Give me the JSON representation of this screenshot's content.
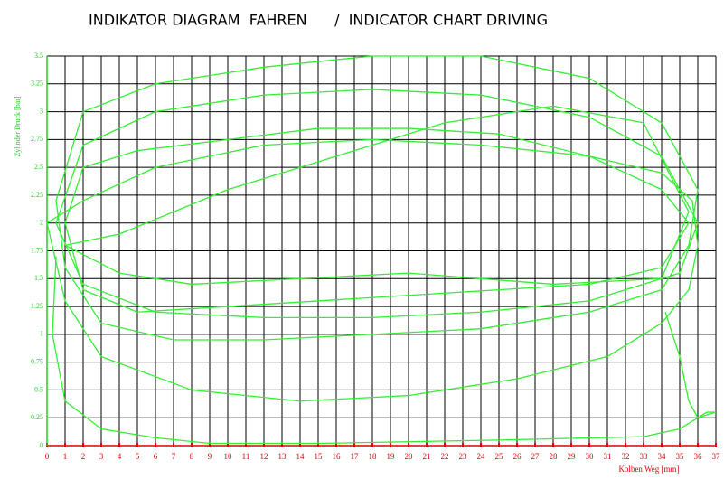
{
  "chart_data": {
    "type": "line",
    "title": "INDIKATOR DIAGRAM  FAHREN      /  INDICATOR CHART DRIVING",
    "x_label": "Kolben Weg [mm]",
    "y_label": "Zylinder Druck [bar]",
    "xlim": [
      0,
      37
    ],
    "ylim": [
      0,
      3.5
    ],
    "xticks": [
      0,
      1,
      2,
      3,
      4,
      5,
      6,
      7,
      8,
      9,
      10,
      11,
      12,
      13,
      14,
      15,
      16,
      17,
      18,
      19,
      20,
      21,
      22,
      23,
      24,
      25,
      26,
      27,
      28,
      29,
      30,
      31,
      32,
      33,
      34,
      35,
      36,
      37
    ],
    "yticks": [
      0,
      0.25,
      0.5,
      0.75,
      1,
      1.25,
      1.5,
      1.75,
      2,
      2.25,
      2.5,
      2.75,
      3,
      3.25,
      3.5
    ],
    "grid": true,
    "series": [
      {
        "color": "#33ee33",
        "x": [
          1,
          2,
          5,
          10,
          15,
          20,
          25,
          30,
          34,
          35.5,
          34,
          30,
          25,
          20,
          15,
          10,
          5,
          2,
          1
        ],
        "values": [
          2.0,
          2.5,
          2.65,
          2.75,
          2.85,
          2.85,
          2.8,
          2.6,
          2.3,
          2.0,
          1.6,
          1.45,
          1.4,
          1.35,
          1.3,
          1.25,
          1.2,
          1.4,
          2.0
        ]
      },
      {
        "color": "#33ee33",
        "x": [
          0.5,
          2,
          6,
          12,
          18,
          24,
          30,
          34,
          36,
          35,
          30,
          24,
          18,
          12,
          6,
          2,
          0.5
        ],
        "values": [
          2.0,
          2.7,
          3.0,
          3.15,
          3.2,
          3.15,
          2.95,
          2.6,
          2.0,
          1.55,
          1.3,
          1.2,
          1.15,
          1.15,
          1.2,
          1.45,
          2.0
        ]
      },
      {
        "color": "#33ee33",
        "x": [
          0.5,
          2,
          6,
          12,
          18,
          24,
          30,
          34,
          36,
          35.5,
          34,
          30,
          24,
          18,
          12,
          7,
          3,
          1,
          0.5
        ],
        "values": [
          2.2,
          3.0,
          3.25,
          3.4,
          3.5,
          3.5,
          3.3,
          2.9,
          2.3,
          1.8,
          1.4,
          1.2,
          1.05,
          1.0,
          0.95,
          0.95,
          1.1,
          1.6,
          2.2
        ]
      },
      {
        "color": "#33ee33",
        "x": [
          0,
          1,
          3,
          8,
          14,
          20,
          26,
          31,
          34,
          35.5,
          36,
          35.7,
          34,
          30,
          24,
          18,
          12,
          6,
          2,
          0
        ],
        "values": [
          2.0,
          1.3,
          0.8,
          0.5,
          0.4,
          0.45,
          0.6,
          0.8,
          1.1,
          1.4,
          1.8,
          2.2,
          2.45,
          2.6,
          2.7,
          2.75,
          2.7,
          2.5,
          2.2,
          2.0
        ]
      },
      {
        "color": "#33ee33",
        "x": [
          1,
          4,
          10,
          16,
          22,
          28,
          33,
          35.5,
          34,
          28,
          20,
          14,
          8,
          4,
          1
        ],
        "values": [
          1.8,
          1.9,
          2.3,
          2.6,
          2.9,
          3.05,
          2.9,
          2.1,
          1.5,
          1.45,
          1.55,
          1.5,
          1.45,
          1.55,
          1.8
        ]
      },
      {
        "color": "#33ee33",
        "x": [
          0.5,
          0.3,
          1,
          3,
          6,
          9,
          15,
          25,
          33,
          35,
          36.5,
          37
        ],
        "values": [
          1.7,
          1.0,
          0.4,
          0.15,
          0.07,
          0.02,
          0.02,
          0.05,
          0.08,
          0.15,
          0.3,
          0.3
        ]
      },
      {
        "color": "#33ee33",
        "x": [
          34.2,
          35,
          35.5,
          36,
          37
        ],
        "values": [
          1.2,
          0.8,
          0.4,
          0.25,
          0.3
        ]
      }
    ]
  }
}
